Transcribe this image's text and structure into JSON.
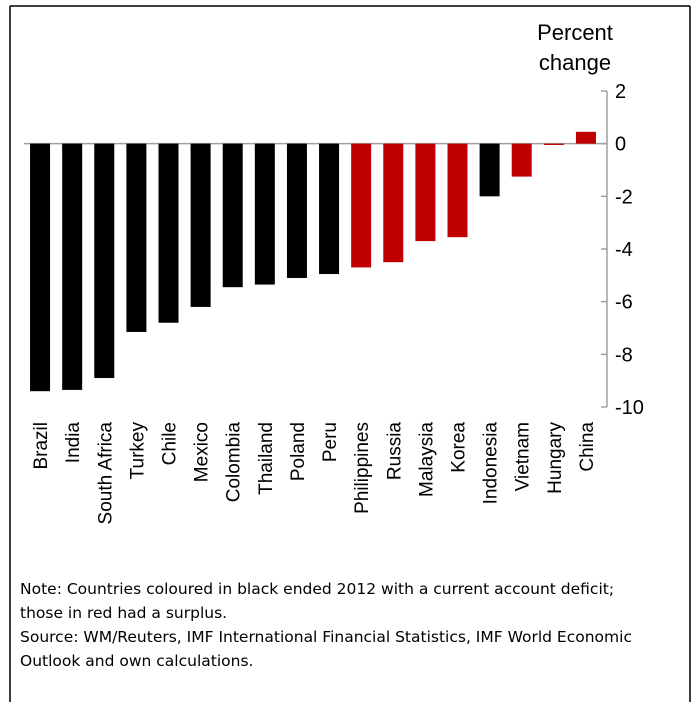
{
  "chart_data": {
    "type": "bar",
    "y_label": "Percent change",
    "categories": [
      "Brazil",
      "India",
      "South Africa",
      "Turkey",
      "Chile",
      "Mexico",
      "Colombia",
      "Thailand",
      "Poland",
      "Peru",
      "Philippines",
      "Russia",
      "Malaysia",
      "Korea",
      "Indonesia",
      "Vietnam",
      "Hungary",
      "China"
    ],
    "values": [
      -9.4,
      -9.35,
      -8.9,
      -7.15,
      -6.8,
      -6.2,
      -5.45,
      -5.35,
      -5.1,
      -4.95,
      -4.7,
      -4.5,
      -3.7,
      -3.55,
      -2.0,
      -1.25,
      -0.05,
      0.45
    ],
    "colors": [
      "#000000",
      "#000000",
      "#000000",
      "#000000",
      "#000000",
      "#000000",
      "#000000",
      "#000000",
      "#000000",
      "#000000",
      "#c00000",
      "#c00000",
      "#c00000",
      "#c00000",
      "#000000",
      "#c00000",
      "#c00000",
      "#c00000"
    ],
    "ylim": [
      -10,
      2
    ],
    "yticks": [
      2,
      0,
      -2,
      -4,
      -6,
      -8,
      -10
    ],
    "note": "Note: Countries coloured in black ended 2012 with a current account deficit; those in red had a surplus.",
    "source": "Source: WM/Reuters, IMF International Financial Statistics, IMF World Economic Outlook and own calculations."
  }
}
